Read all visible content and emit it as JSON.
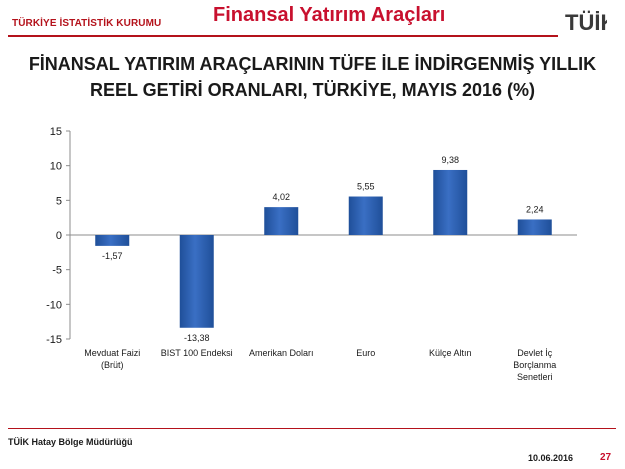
{
  "header": {
    "organization": "TÜRKİYE İSTATİSTİK KURUMU",
    "slide_title": "Finansal Yatırım Araçları",
    "logo_text": "TÜİK"
  },
  "chart_data": {
    "type": "bar",
    "title_line1": "FİNANSAL YATIRIM ARAÇLARININ TÜFE İLE İNDİRGENMİŞ YILLIK",
    "title_line2": "REEL GETİRİ ORANLARI, TÜRKİYE, MAYIS 2016 (%)",
    "categories": [
      [
        "Mevduat Faizi",
        "(Brüt)"
      ],
      [
        "BIST 100 Endeksi"
      ],
      [
        "Amerikan Doları"
      ],
      [
        "Euro"
      ],
      [
        "Külçe Altın"
      ],
      [
        "Devlet İç",
        "Borçlanma",
        "Senetleri"
      ]
    ],
    "values": [
      -1.57,
      -13.38,
      4.02,
      5.55,
      9.38,
      2.24
    ],
    "value_labels": [
      "-1,57",
      "-13,38",
      "4,02",
      "5,55",
      "9,38",
      "2,24"
    ],
    "ylim": [
      -15,
      15
    ],
    "yticks": [
      15,
      10,
      5,
      0,
      -5,
      -10,
      -15
    ],
    "bar_color": "#3a6fc4",
    "bar_color_dark": "#1f4f99",
    "grid": false
  },
  "footer": {
    "office": "TÜİK Hatay Bölge Müdürlüğü",
    "date": "10.06.2016",
    "page": "27"
  }
}
